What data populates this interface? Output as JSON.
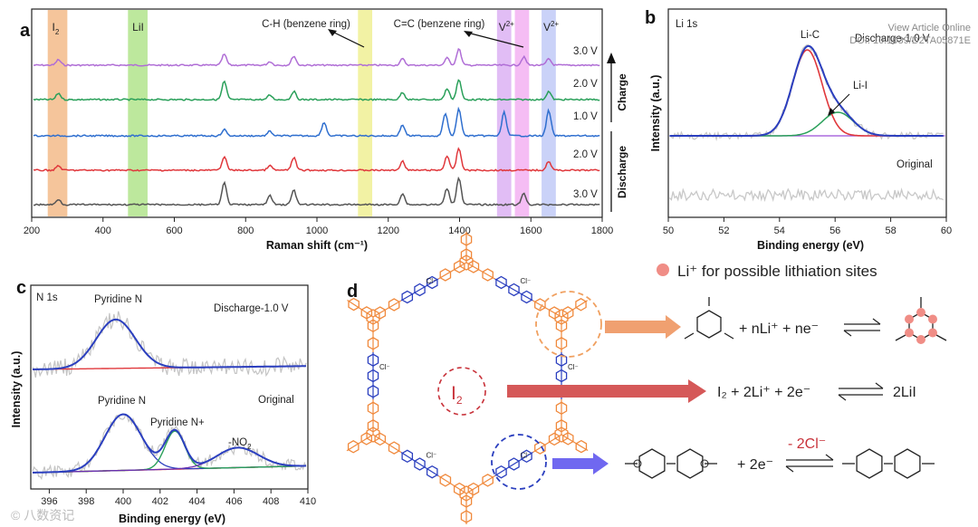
{
  "watermark": {
    "line1": "View Article Online",
    "line2": "DOI: 10.1039/D2TA05871E",
    "corner": "© 八数资记"
  },
  "chart_data": [
    {
      "panel": "a",
      "type": "line",
      "xlabel": "Raman shift (cm⁻¹)",
      "ylabel": "",
      "xlim": [
        200,
        1800
      ],
      "xticks": [
        200,
        400,
        600,
        800,
        1000,
        1200,
        1400,
        1600,
        1800
      ],
      "series": [
        {
          "name": "3.0 V (charge)",
          "color": "#b06ed6",
          "baseline": 72,
          "peaks": [
            [
              275,
              6
            ],
            [
              740,
              12
            ],
            [
              868,
              4
            ],
            [
              935,
              10
            ],
            [
              1240,
              7
            ],
            [
              1365,
              8
            ],
            [
              1398,
              18
            ],
            [
              1580,
              9
            ],
            [
              1650,
              7
            ]
          ]
        },
        {
          "name": "2.0 V (charge)",
          "color": "#2aa05a",
          "baseline": 110,
          "peaks": [
            [
              275,
              7
            ],
            [
              740,
              20
            ],
            [
              868,
              5
            ],
            [
              935,
              9
            ],
            [
              1240,
              8
            ],
            [
              1365,
              12
            ],
            [
              1398,
              22
            ],
            [
              1650,
              9
            ]
          ]
        },
        {
          "name": "1.0 V",
          "color": "#2f6fcf",
          "baseline": 150,
          "peaks": [
            [
              740,
              7
            ],
            [
              868,
              5
            ],
            [
              1020,
              15
            ],
            [
              1240,
              12
            ],
            [
              1360,
              25
            ],
            [
              1398,
              30
            ],
            [
              1525,
              26
            ],
            [
              1650,
              28
            ]
          ]
        },
        {
          "name": "2.0 V (discharge)",
          "color": "#e0383c",
          "baseline": 188,
          "peaks": [
            [
              275,
              5
            ],
            [
              740,
              15
            ],
            [
              868,
              5
            ],
            [
              935,
              14
            ],
            [
              1240,
              10
            ],
            [
              1365,
              16
            ],
            [
              1398,
              24
            ],
            [
              1650,
              10
            ]
          ]
        },
        {
          "name": "3.0 V (discharge)",
          "color": "#555555",
          "baseline": 226,
          "peaks": [
            [
              275,
              6
            ],
            [
              740,
              24
            ],
            [
              868,
              10
            ],
            [
              935,
              16
            ],
            [
              1240,
              12
            ],
            [
              1365,
              18
            ],
            [
              1398,
              30
            ],
            [
              1580,
              12
            ]
          ]
        }
      ],
      "bands": [
        {
          "label": "I",
          "sub": "2",
          "range": [
            245,
            300
          ],
          "color": "#f2b27a"
        },
        {
          "label": "LiI",
          "sub": "",
          "range": [
            470,
            525
          ],
          "color": "#a7e07c"
        },
        {
          "label": "",
          "sub": "",
          "range": [
            1115,
            1155
          ],
          "color": "#eeee86"
        },
        {
          "label": "V",
          "sub": "2+",
          "range": [
            1505,
            1545
          ],
          "color": "#d7a7f2"
        },
        {
          "label": "",
          "sub": "",
          "range": [
            1555,
            1595
          ],
          "color": "#f2a7f0"
        },
        {
          "label": "V",
          "sub": "2+",
          "range": [
            1630,
            1670
          ],
          "color": "#b8c3f5"
        }
      ],
      "annotations": [
        "C-H (benzene ring)",
        "C=C (benzene ring)"
      ],
      "voltage_labels": [
        "3.0 V",
        "2.0 V",
        "1.0 V",
        "2.0 V",
        "3.0 V"
      ],
      "process_labels": [
        "Charge",
        "Discharge"
      ]
    },
    {
      "panel": "b",
      "type": "line",
      "title": "Li 1s",
      "xlabel": "Binding energy (eV)",
      "ylabel": "Intensity (a.u.)",
      "xlim": [
        50,
        60
      ],
      "xticks": [
        50,
        52,
        54,
        56,
        58,
        60
      ],
      "peaks": [
        {
          "name": "Li-C",
          "center": 55.0,
          "color": "#e0383c"
        },
        {
          "name": "Li-I",
          "center": 56.1,
          "color": "#2aa05a"
        }
      ],
      "envelope_color": "#2b3fbf",
      "trace_labels": [
        "Discharge-1.0 V",
        "Original"
      ]
    },
    {
      "panel": "c",
      "type": "line",
      "title": "N 1s",
      "xlabel": "Binding energy (eV)",
      "ylabel": "Intensity (a.u.)",
      "xlim": [
        395,
        410
      ],
      "xticks": [
        396,
        398,
        400,
        402,
        404,
        406,
        408,
        410
      ],
      "discharge_peaks": [
        {
          "name": "Pyridine N",
          "center": 399.6
        }
      ],
      "original_peaks": [
        {
          "name": "Pyridine N",
          "center": 400.0
        },
        {
          "name": "Pyridine N+",
          "center": 402.8
        },
        {
          "name": "-NO₂",
          "center": 406.2
        }
      ],
      "trace_labels": [
        "Discharge-1.0 V",
        "Original"
      ],
      "peak_labels": [
        "Pyridine N",
        "Pyridine N",
        "Pyridine N+",
        "-NO"
      ],
      "no2_sub": "2"
    }
  ],
  "panel_d": {
    "panel_letter": "d",
    "legend_text": "Li⁺ for possible lithiation sites",
    "center_label": "I",
    "center_sub": "2",
    "counterion_label": "Cl⁻",
    "reaction1": "+ nLi⁺ + ne⁻",
    "reaction2_left": "I₂ + 2Li⁺ + 2e⁻",
    "reaction2_right": "2LiI",
    "reaction3_left": "+ 2e⁻",
    "reaction3_top": "- 2Cl⁻",
    "colors": {
      "orange": "#f0893c",
      "blue": "#2b3fbf",
      "red": "#c8323a",
      "pink": "#f08d86",
      "arrow_orange": "#f0a070",
      "arrow_red": "#d55858",
      "arrow_blue": "#7068f0"
    }
  },
  "labels": {
    "a": "a",
    "b": "b",
    "c": "c",
    "d": "d"
  }
}
